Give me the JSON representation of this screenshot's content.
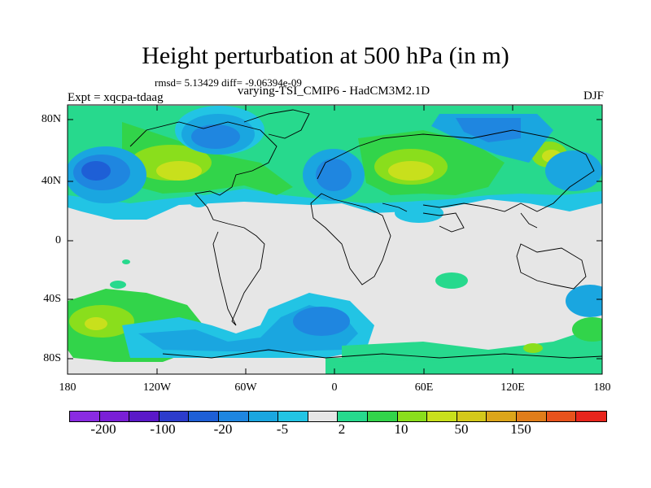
{
  "title": "Height perturbation at 500 hPa (in m)",
  "stats": "rmsd= 5.13429 diff= -9.06394e-09",
  "expt": "Expt = xqcpa-tdaag",
  "model": "varying-TSI_CMIP6 - HadCM3M2.1D",
  "season": "DJF",
  "lat_labels": [
    "80N",
    "40N",
    "0",
    "40S",
    "80S"
  ],
  "lon_labels": [
    "180",
    "120W",
    "60W",
    "0",
    "60E",
    "120E",
    "180"
  ],
  "colorbar": {
    "colors": [
      "#8a2be2",
      "#7a1fd6",
      "#5a19c8",
      "#2c3ccc",
      "#1e5fd6",
      "#1f86e0",
      "#1aa6e0",
      "#22c4e4",
      "#e6e6e6",
      "#27d98d",
      "#32d44a",
      "#8ade1c",
      "#c8e01c",
      "#d4c81a",
      "#dca51a",
      "#e07d1a",
      "#e8531c",
      "#e8251c"
    ],
    "labels": [
      "-200",
      "-100",
      "-20",
      "-5",
      "2",
      "10",
      "50",
      "150"
    ]
  }
}
